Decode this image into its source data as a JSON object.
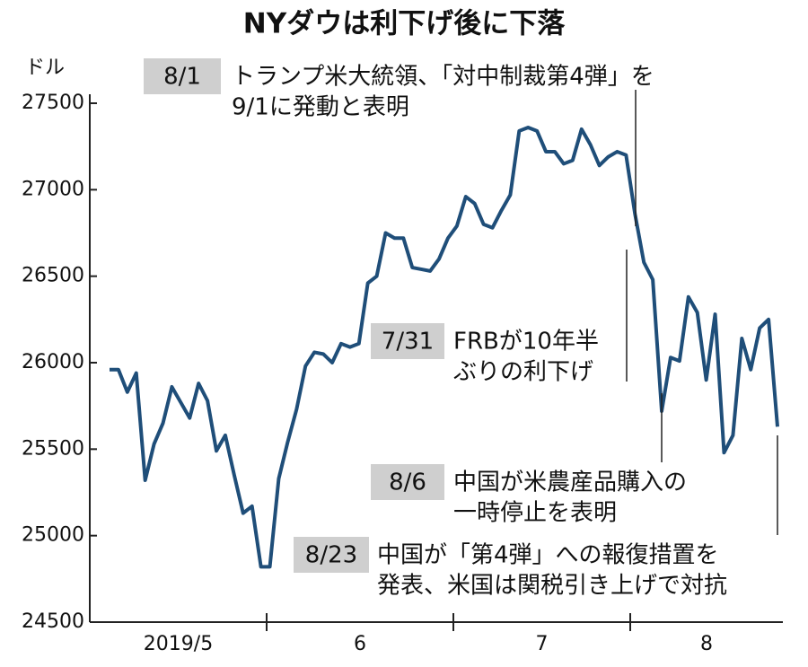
{
  "chart_data": {
    "type": "line",
    "title": "NYダウは利下げ後に下落",
    "y_unit": "ドル",
    "xlabels": [
      "2019/5",
      "6",
      "7",
      "8"
    ],
    "series": [
      {
        "name": "NYダウ",
        "color": "#1f4e79",
        "values": [
          25960,
          25960,
          25830,
          25940,
          25320,
          25530,
          25650,
          25860,
          25770,
          25680,
          25880,
          25780,
          25490,
          25580,
          25350,
          25130,
          25170,
          24820,
          24820,
          25330,
          25540,
          25730,
          25980,
          26060,
          26050,
          26000,
          26110,
          26090,
          26110,
          26460,
          26500,
          26750,
          26720,
          26720,
          26550,
          26540,
          26530,
          26600,
          26720,
          26790,
          26960,
          26920,
          26800,
          26780,
          26880,
          26970,
          27340,
          27360,
          27340,
          27220,
          27220,
          27150,
          27170,
          27350,
          27260,
          27140,
          27190,
          27220,
          27200,
          26860,
          26580,
          26480,
          25720,
          26030,
          26010,
          26380,
          26290,
          25900,
          26280,
          25480,
          25580,
          26140,
          25960,
          26200,
          26250,
          25630
        ]
      }
    ],
    "ylim": [
      24500,
      27500
    ],
    "yticks": [
      24500,
      25000,
      25500,
      26000,
      26500,
      27000,
      27500
    ],
    "annotations": [
      {
        "date": "8/1",
        "lines": [
          "トランプ米大統領、「対中制裁第4弾」を",
          "9/1に発動と表明"
        ]
      },
      {
        "date": "7/31",
        "lines": [
          "FRBが10年半",
          "ぶりの利下げ"
        ]
      },
      {
        "date": "8/6",
        "lines": [
          "中国が米農産品購入の",
          "一時停止を表明"
        ]
      },
      {
        "date": "8/23",
        "lines": [
          "中国が「第4弾」への報復措置を",
          "発表、米国は関税引き上げで対抗"
        ]
      }
    ]
  }
}
